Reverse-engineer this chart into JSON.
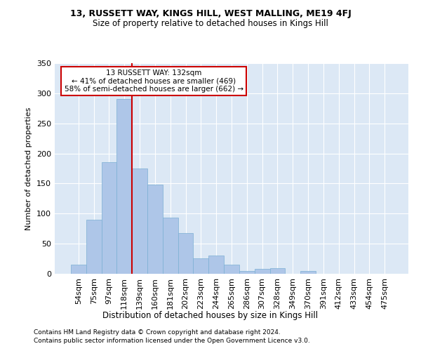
{
  "title1": "13, RUSSETT WAY, KINGS HILL, WEST MALLING, ME19 4FJ",
  "title2": "Size of property relative to detached houses in Kings Hill",
  "xlabel": "Distribution of detached houses by size in Kings Hill",
  "ylabel": "Number of detached properties",
  "footnote1": "Contains HM Land Registry data © Crown copyright and database right 2024.",
  "footnote2": "Contains public sector information licensed under the Open Government Licence v3.0.",
  "annotation_line1": "13 RUSSETT WAY: 132sqm",
  "annotation_line2": "← 41% of detached houses are smaller (469)",
  "annotation_line3": "58% of semi-detached houses are larger (662) →",
  "bar_labels": [
    "54sqm",
    "75sqm",
    "97sqm",
    "118sqm",
    "139sqm",
    "160sqm",
    "181sqm",
    "202sqm",
    "223sqm",
    "244sqm",
    "265sqm",
    "286sqm",
    "307sqm",
    "328sqm",
    "349sqm",
    "370sqm",
    "391sqm",
    "412sqm",
    "433sqm",
    "454sqm",
    "475sqm"
  ],
  "bar_values": [
    15,
    90,
    185,
    290,
    175,
    148,
    93,
    68,
    26,
    30,
    15,
    5,
    8,
    9,
    0,
    5,
    0,
    0,
    0,
    0,
    0
  ],
  "bar_color": "#aec6e8",
  "bar_edgecolor": "#7bafd4",
  "vline_x": 3.5,
  "vline_color": "#cc0000",
  "annotation_box_color": "#cc0000",
  "background_color": "#dce8f5",
  "ylim": [
    0,
    350
  ],
  "yticks": [
    0,
    50,
    100,
    150,
    200,
    250,
    300,
    350
  ]
}
